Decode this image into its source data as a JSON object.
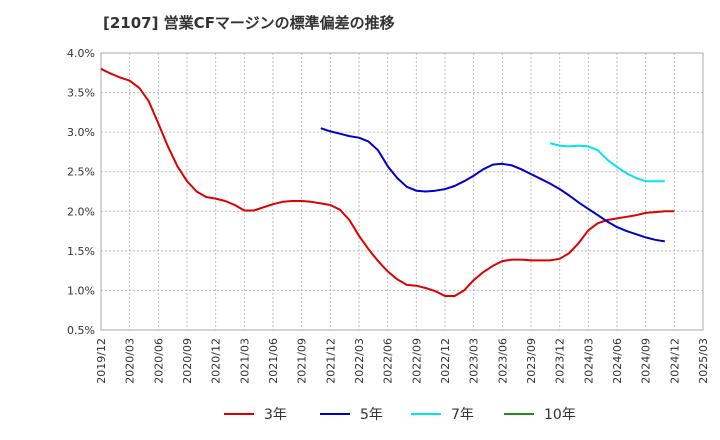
{
  "chart_data": {
    "type": "line",
    "title": "[2107]  営業CFマージンの標準偏差の推移",
    "xlabel": "",
    "ylabel": "",
    "ylim": [
      0.5,
      4.0
    ],
    "yticks": [
      0.5,
      1.0,
      1.5,
      2.0,
      2.5,
      3.0,
      3.5,
      4.0
    ],
    "ytick_labels": [
      "0.5%",
      "1.0%",
      "1.5%",
      "2.0%",
      "2.5%",
      "3.0%",
      "3.5%",
      "4.0%"
    ],
    "xticks": [
      "2019/12",
      "2020/03",
      "2020/06",
      "2020/09",
      "2020/12",
      "2021/03",
      "2021/06",
      "2021/09",
      "2021/12",
      "2022/03",
      "2022/06",
      "2022/09",
      "2022/12",
      "2023/03",
      "2023/06",
      "2023/09",
      "2023/12",
      "2024/03",
      "2024/06",
      "2024/09",
      "2024/12",
      "2025/03"
    ],
    "grid": true,
    "legend_position": "bottom",
    "series": [
      {
        "name": "3年",
        "color": "#dd0000",
        "start": "2019/12",
        "values": [
          3.8,
          3.74,
          3.69,
          3.65,
          3.56,
          3.39,
          3.11,
          2.82,
          2.57,
          2.38,
          2.25,
          2.18,
          2.16,
          2.13,
          2.08,
          2.01,
          2.01,
          2.05,
          2.09,
          2.12,
          2.13,
          2.13,
          2.12,
          2.1,
          2.08,
          2.02,
          1.89,
          1.69,
          1.52,
          1.37,
          1.24,
          1.14,
          1.07,
          1.06,
          1.03,
          0.99,
          0.93,
          0.93,
          1.0,
          1.13,
          1.23,
          1.31,
          1.37,
          1.39,
          1.39,
          1.38,
          1.38,
          1.38,
          1.4,
          1.47,
          1.6,
          1.76,
          1.85,
          1.89,
          1.91,
          1.93,
          1.95,
          1.98,
          1.99,
          2.0,
          2.0
        ]
      },
      {
        "name": "5年",
        "color": "#0000cc",
        "start": "2021/11",
        "values": [
          3.05,
          3.01,
          2.98,
          2.95,
          2.93,
          2.88,
          2.77,
          2.57,
          2.42,
          2.31,
          2.26,
          2.25,
          2.26,
          2.28,
          2.32,
          2.38,
          2.45,
          2.53,
          2.59,
          2.6,
          2.58,
          2.53,
          2.47,
          2.41,
          2.35,
          2.28,
          2.2,
          2.11,
          2.03,
          1.95,
          1.87,
          1.8,
          1.75,
          1.71,
          1.67,
          1.64,
          1.62
        ]
      },
      {
        "name": "7年",
        "color": "#00e5ee",
        "start": "2023/11",
        "values": [
          2.86,
          2.83,
          2.82,
          2.83,
          2.82,
          2.77,
          2.65,
          2.56,
          2.48,
          2.42,
          2.38,
          2.38,
          2.38
        ]
      },
      {
        "name": "10年",
        "color": "#228b22",
        "start": "",
        "values": []
      }
    ]
  }
}
